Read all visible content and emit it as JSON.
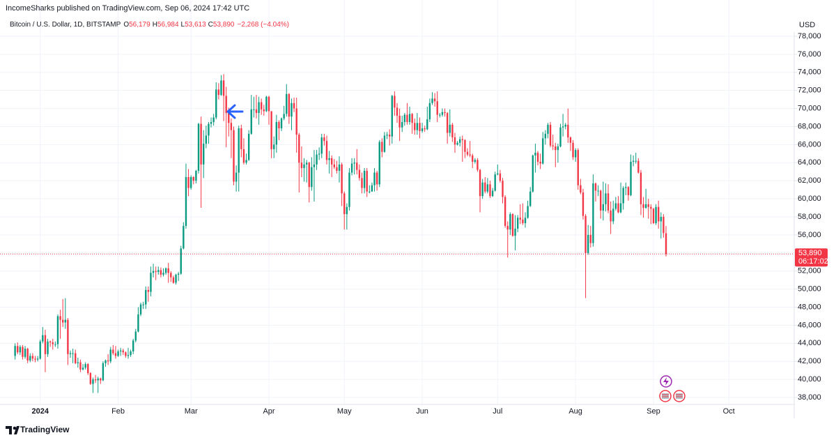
{
  "header": {
    "publisher": "IncomeSharks published on TradingView.com, Sep 06, 2024 17:42 UTC"
  },
  "chart_data": {
    "type": "candlestick",
    "title": "Bitcoin / U.S. Dollar, 1D, BITSTAMP",
    "ohlc_labels": [
      {
        "key": "O",
        "value": "56,179"
      },
      {
        "key": "H",
        "value": "56,984"
      },
      {
        "key": "L",
        "value": "53,613"
      },
      {
        "key": "C",
        "value": "53,890"
      }
    ],
    "change": "−2,268 (−4.04%)",
    "y_axis_label": "USD",
    "up_color": "#089981",
    "down_color": "#f23645",
    "open": [
      42600,
      43700,
      43000,
      43600,
      42500,
      43400,
      42100,
      42600,
      42300,
      42200,
      42300,
      44200,
      44900,
      42800,
      44200,
      44100,
      43900,
      43900,
      47000,
      46600,
      46300,
      46600,
      42800,
      42900,
      42900,
      41800,
      41900,
      41100,
      41300,
      41700,
      40700,
      39500,
      40000,
      39900,
      40100,
      39900,
      41800,
      42100,
      42000,
      43300,
      42900,
      42600,
      43100,
      43200,
      43000,
      42600,
      42700,
      43100,
      44300,
      45300,
      47200,
      48300,
      48300,
      49900,
      49700,
      51800,
      52000,
      51900,
      52100,
      51600,
      51800,
      52300,
      51800,
      51300,
      50700,
      51600,
      51700,
      54500,
      57000,
      62400,
      61200,
      62400,
      62000,
      63100,
      68300,
      63800,
      66100,
      67000,
      68300,
      68500,
      69000,
      72100,
      71500,
      73100,
      71400,
      69500,
      68400,
      67600,
      61900,
      62900,
      67800,
      65500,
      64000,
      64300,
      67200,
      69900,
      69900,
      69500,
      70700,
      69900,
      69700,
      71300,
      69700,
      65500,
      66000,
      68500,
      67800,
      68900,
      69400,
      71600,
      69100,
      70600,
      70000,
      67100,
      64000,
      63400,
      63800,
      64000,
      61300,
      63500,
      63800,
      64900,
      65000,
      66800,
      66400,
      64300,
      64500,
      63800,
      63500,
      63100,
      63800,
      60600,
      58300,
      59100,
      62900,
      63900,
      64000,
      63200,
      62300,
      61200,
      63100,
      60800,
      60800,
      61500,
      62900,
      61600,
      66300,
      65200,
      67000,
      67100,
      66900,
      71400,
      70100,
      69200,
      67900,
      68500,
      69300,
      68500,
      69400,
      68400,
      67600,
      68400,
      67500,
      67800,
      67700,
      68800,
      70600,
      71100,
      70800,
      69300,
      69300,
      69600,
      69500,
      67300,
      68200,
      66800,
      66000,
      66200,
      66600,
      66500,
      65200,
      64900,
      64800,
      64100,
      64300,
      63200,
      60300,
      61800,
      60800,
      61600,
      60300,
      60900,
      62700,
      62800,
      62000,
      60200,
      57000,
      56600,
      58300,
      55900,
      56700,
      57900,
      57700,
      57300,
      57900,
      59200,
      60800,
      64800,
      65100,
      64100,
      63900,
      66700,
      67200,
      68200,
      65900,
      65800,
      65400,
      65800,
      67900,
      68000,
      68200,
      66800,
      66200,
      64600,
      65400,
      61500,
      60700,
      58100,
      54000,
      56000,
      55100,
      61700,
      60900,
      60900,
      58700,
      59400,
      60600,
      58700,
      57500,
      58900,
      59500,
      58500,
      59500,
      61200,
      61300,
      60400,
      64100,
      64200,
      64200,
      62900,
      59400,
      59000,
      59400,
      59100,
      58900,
      57300,
      59100,
      57500,
      58000,
      56179
    ],
    "high": [
      44000,
      44100,
      43800,
      43800,
      43700,
      43500,
      42900,
      42900,
      42600,
      42600,
      44400,
      45800,
      45500,
      44500,
      44300,
      44500,
      44200,
      47200,
      47700,
      48900,
      49000,
      46800,
      43200,
      43400,
      43300,
      42400,
      42200,
      41700,
      41900,
      41800,
      40800,
      40200,
      40500,
      40300,
      40200,
      42000,
      42200,
      42800,
      43600,
      43800,
      43700,
      43300,
      43500,
      43400,
      43100,
      43500,
      43300,
      44500,
      45600,
      48000,
      48500,
      48600,
      50300,
      50300,
      52500,
      52800,
      52500,
      52500,
      52400,
      52300,
      52400,
      52900,
      52000,
      51500,
      51700,
      51900,
      54800,
      57400,
      63900,
      63300,
      62600,
      62500,
      63200,
      68400,
      69100,
      67600,
      68100,
      68500,
      69000,
      69400,
      72900,
      72800,
      73700,
      73800,
      72400,
      70100,
      68900,
      68000,
      63700,
      68100,
      68200,
      66700,
      65000,
      67600,
      71500,
      71300,
      71500,
      71300,
      71100,
      70400,
      71400,
      71400,
      69700,
      66900,
      69300,
      68700,
      69000,
      70300,
      72700,
      71700,
      71100,
      71200,
      71200,
      67300,
      65800,
      64500,
      64300,
      64100,
      64600,
      65400,
      65400,
      65700,
      67200,
      67200,
      67000,
      65300,
      64800,
      64400,
      64200,
      64700,
      64000,
      60800,
      59500,
      63400,
      64500,
      64500,
      65500,
      63800,
      62900,
      63400,
      63400,
      61500,
      61800,
      63400,
      63100,
      66500,
      66700,
      67400,
      67400,
      67700,
      71500,
      71900,
      70600,
      70000,
      69200,
      69500,
      70600,
      70200,
      69500,
      68900,
      69500,
      69000,
      68400,
      68100,
      70200,
      71100,
      71800,
      71700,
      71900,
      69500,
      70000,
      70000,
      69600,
      69900,
      68400,
      67300,
      66400,
      66900,
      67000,
      66600,
      65600,
      66400,
      65000,
      64500,
      64500,
      63300,
      62200,
      62400,
      62300,
      62000,
      61200,
      63000,
      63800,
      63200,
      62300,
      60400,
      57500,
      58500,
      58400,
      58200,
      58200,
      59400,
      59500,
      58500,
      59800,
      61300,
      64900,
      66100,
      65300,
      65000,
      67400,
      67600,
      68400,
      68500,
      67100,
      66200,
      66100,
      68300,
      69400,
      68400,
      70000,
      66900,
      66500,
      65600,
      65600,
      62200,
      61100,
      58300,
      57100,
      57000,
      62700,
      61800,
      61500,
      61000,
      61900,
      61700,
      61600,
      59700,
      59800,
      60200,
      60300,
      61800,
      61400,
      61800,
      61400,
      64900,
      64800,
      65100,
      64500,
      63200,
      60200,
      61100,
      60000,
      59400,
      59000,
      59400,
      59800,
      58500,
      58300,
      56984
    ],
    "low": [
      42200,
      42800,
      42700,
      42200,
      42300,
      41800,
      41900,
      42000,
      41900,
      42000,
      42200,
      44000,
      40800,
      42500,
      43600,
      43300,
      43600,
      43400,
      44500,
      45800,
      45600,
      41600,
      42400,
      41800,
      41700,
      41300,
      40800,
      41000,
      41100,
      40500,
      39400,
      38500,
      39600,
      38500,
      39500,
      39800,
      41400,
      41600,
      41800,
      42700,
      42300,
      42500,
      42600,
      42700,
      42400,
      42300,
      42500,
      42800,
      44100,
      45200,
      47000,
      47800,
      47800,
      48600,
      49200,
      51300,
      51000,
      51600,
      51300,
      51400,
      51600,
      50700,
      50800,
      50600,
      50500,
      50900,
      51600,
      54400,
      56700,
      60300,
      61000,
      61600,
      61700,
      62800,
      59000,
      62300,
      65600,
      66100,
      67900,
      68100,
      68800,
      71000,
      71400,
      68600,
      65700,
      66900,
      64500,
      61500,
      60800,
      60800,
      64600,
      63800,
      63800,
      64200,
      67100,
      69000,
      68900,
      68200,
      69300,
      69200,
      69600,
      68200,
      64500,
      64500,
      65100,
      66500,
      67500,
      68700,
      69100,
      68300,
      67600,
      69600,
      65100,
      60700,
      62400,
      61900,
      61800,
      59600,
      60900,
      59700,
      63200,
      64300,
      64500,
      65900,
      63800,
      62800,
      62400,
      63300,
      62800,
      61800,
      59200,
      56600,
      56600,
      58700,
      62600,
      62700,
      62700,
      62000,
      60600,
      60600,
      60200,
      60600,
      60800,
      60800,
      60900,
      61300,
      64600,
      65100,
      66600,
      65900,
      66100,
      69200,
      68400,
      66400,
      67400,
      68100,
      68200,
      68200,
      67200,
      67100,
      67100,
      66700,
      67300,
      67400,
      67600,
      68500,
      70400,
      70200,
      68500,
      69000,
      69100,
      69100,
      66100,
      66900,
      66300,
      65100,
      65900,
      65800,
      64100,
      64500,
      64700,
      64600,
      63400,
      63900,
      63000,
      58500,
      60000,
      60600,
      60600,
      60100,
      60200,
      60800,
      62600,
      61800,
      59500,
      56800,
      53500,
      56000,
      55800,
      54300,
      56300,
      57200,
      57100,
      56800,
      57800,
      59100,
      60700,
      62900,
      63700,
      63300,
      63800,
      66000,
      66700,
      65700,
      65400,
      63500,
      64000,
      65700,
      66900,
      67700,
      66200,
      65300,
      64300,
      64100,
      61000,
      60500,
      57700,
      49000,
      53800,
      54600,
      54700,
      59700,
      60300,
      57800,
      57600,
      58600,
      58400,
      56100,
      57200,
      58700,
      58400,
      58400,
      58800,
      60400,
      59800,
      60300,
      63600,
      63900,
      62800,
      58200,
      57900,
      58900,
      57800,
      57200,
      57200,
      57100,
      56700,
      55600,
      55700,
      53613
    ],
    "close": [
      43700,
      43000,
      43600,
      42500,
      43400,
      42100,
      42600,
      42300,
      42200,
      42300,
      44200,
      44900,
      42800,
      44200,
      44100,
      43900,
      43900,
      47000,
      46600,
      46300,
      46600,
      42800,
      42900,
      42900,
      41800,
      41900,
      41100,
      41300,
      41700,
      40700,
      39500,
      40000,
      39900,
      40100,
      39900,
      41800,
      42100,
      42000,
      43300,
      42900,
      42600,
      43100,
      43200,
      43000,
      42600,
      42700,
      43100,
      44300,
      45300,
      47200,
      48300,
      48300,
      49900,
      49700,
      51800,
      52000,
      51900,
      52100,
      51600,
      51800,
      52300,
      51800,
      51300,
      50700,
      51600,
      51700,
      54500,
      57000,
      62400,
      61200,
      62400,
      62000,
      63100,
      68300,
      63800,
      66100,
      67000,
      68300,
      68500,
      69000,
      72100,
      71500,
      73100,
      71400,
      69500,
      68400,
      67600,
      61900,
      62900,
      67800,
      65500,
      64000,
      64300,
      67200,
      69900,
      69900,
      69500,
      70700,
      69900,
      69700,
      71300,
      69700,
      65500,
      66000,
      68500,
      67800,
      68900,
      69400,
      71600,
      69100,
      70600,
      70000,
      67100,
      64000,
      63400,
      63800,
      64000,
      61300,
      63500,
      63800,
      64900,
      65000,
      66800,
      66400,
      64300,
      64500,
      63800,
      63500,
      63100,
      63800,
      60600,
      58300,
      59100,
      62900,
      63900,
      64000,
      63200,
      62300,
      61200,
      63100,
      60800,
      60800,
      61500,
      62900,
      61600,
      66300,
      65200,
      67000,
      67100,
      66900,
      71400,
      70100,
      69200,
      67900,
      68500,
      69300,
      68500,
      69400,
      68400,
      67600,
      68400,
      67500,
      67800,
      67700,
      68800,
      70600,
      71100,
      70800,
      69300,
      69300,
      69600,
      69500,
      67300,
      68200,
      66800,
      66000,
      66200,
      66600,
      66500,
      65200,
      64900,
      64800,
      64100,
      64300,
      63200,
      60300,
      61800,
      60800,
      61600,
      60300,
      60900,
      62700,
      62800,
      62000,
      60200,
      57000,
      56600,
      58300,
      55900,
      56700,
      57900,
      57700,
      57300,
      57900,
      59200,
      60800,
      64800,
      65100,
      64100,
      63900,
      66700,
      67200,
      68200,
      65900,
      65800,
      65400,
      65800,
      67900,
      68000,
      68200,
      66800,
      66200,
      64600,
      65400,
      61500,
      60700,
      58100,
      54000,
      56000,
      55100,
      61700,
      60900,
      60900,
      58700,
      59400,
      60600,
      58700,
      57500,
      58900,
      59500,
      58500,
      59500,
      61200,
      61300,
      60400,
      64100,
      64200,
      64200,
      62900,
      59400,
      59000,
      59400,
      59100,
      58900,
      57300,
      59100,
      57500,
      58000,
      56200,
      53890
    ],
    "xlim": [
      -6,
      310
    ],
    "xticks": [
      {
        "value": 10,
        "label": "2024"
      },
      {
        "value": 41,
        "label": "Feb"
      },
      {
        "value": 70,
        "label": "Mar"
      },
      {
        "value": 101,
        "label": "Apr"
      },
      {
        "value": 131,
        "label": "May"
      },
      {
        "value": 162,
        "label": "Jun"
      },
      {
        "value": 192,
        "label": "Jul"
      },
      {
        "value": 223,
        "label": "Aug"
      },
      {
        "value": 254,
        "label": "Sep"
      },
      {
        "value": 284,
        "label": "Oct"
      }
    ],
    "ylim": [
      37230,
      78460
    ],
    "yticks": [
      {
        "value": 38000,
        "label": "38,000"
      },
      {
        "value": 40000,
        "label": "40,000"
      },
      {
        "value": 42000,
        "label": "42,000"
      },
      {
        "value": 44000,
        "label": "44,000"
      },
      {
        "value": 46000,
        "label": "46,000"
      },
      {
        "value": 48000,
        "label": "48,000"
      },
      {
        "value": 50000,
        "label": "50,000"
      },
      {
        "value": 52000,
        "label": "52,000"
      },
      {
        "value": 54000,
        "label": "54,000"
      },
      {
        "value": 56000,
        "label": "56,000"
      },
      {
        "value": 58000,
        "label": "58,000"
      },
      {
        "value": 60000,
        "label": "60,000"
      },
      {
        "value": 62000,
        "label": "62,000"
      },
      {
        "value": 64000,
        "label": "64,000"
      },
      {
        "value": 66000,
        "label": "66,000"
      },
      {
        "value": 68000,
        "label": "68,000"
      },
      {
        "value": 70000,
        "label": "70,000"
      },
      {
        "value": 72000,
        "label": "72,000"
      },
      {
        "value": 74000,
        "label": "74,000"
      },
      {
        "value": 76000,
        "label": "76,000"
      },
      {
        "value": 78000,
        "label": "78,000"
      }
    ],
    "grid": true,
    "last_price": {
      "value": 53890,
      "label": "53,890"
    },
    "countdown": "06:17:02"
  },
  "footer": {
    "brand": "TradingView"
  }
}
